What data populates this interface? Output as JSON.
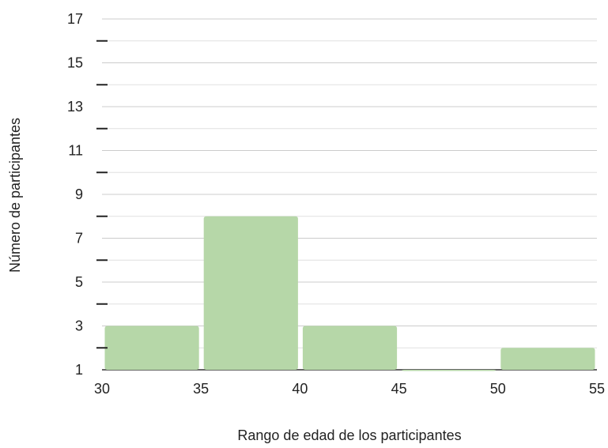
{
  "chart_data": {
    "type": "histogram",
    "bins": [
      {
        "start": 30,
        "end": 35,
        "value": 3
      },
      {
        "start": 35,
        "end": 40,
        "value": 8
      },
      {
        "start": 40,
        "end": 45,
        "value": 3
      },
      {
        "start": 45,
        "end": 50,
        "value": 1
      },
      {
        "start": 50,
        "end": 55,
        "value": 2
      }
    ],
    "xlabel": "Rango de edad de los participantes",
    "ylabel": "Número de participantes",
    "xlim": [
      30,
      55
    ],
    "ylim": [
      1,
      17
    ],
    "x_ticks": [
      "30",
      "35",
      "40",
      "45",
      "50",
      "55"
    ],
    "y_ticks": [
      "1",
      "3",
      "5",
      "7",
      "9",
      "11",
      "13",
      "15",
      "17"
    ],
    "grid": true,
    "bar_color": "#b6d7a8"
  }
}
